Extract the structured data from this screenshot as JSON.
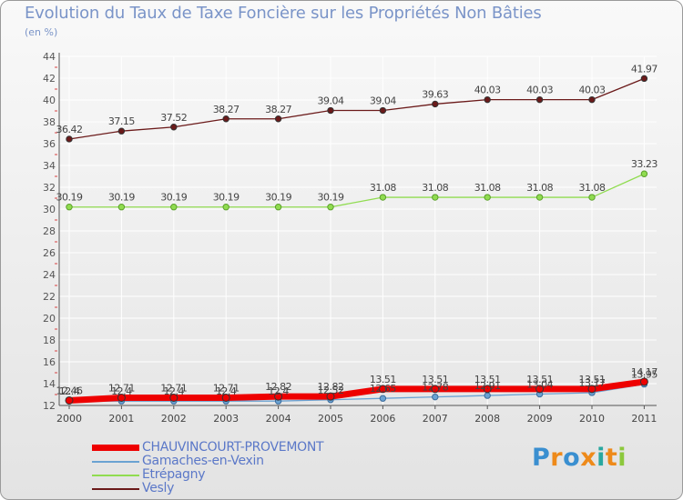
{
  "chart_data": {
    "type": "line",
    "title": "Evolution du Taux de Taxe Foncière sur les Propriétés Non Bâties",
    "unit_label": "(en %)",
    "xlabel": "",
    "ylabel": "",
    "categories": [
      "2000",
      "2001",
      "2002",
      "2003",
      "2004",
      "2005",
      "2006",
      "2007",
      "2008",
      "2009",
      "2010",
      "2011"
    ],
    "ylim": [
      12,
      44
    ],
    "yticks": [
      12,
      14,
      16,
      18,
      20,
      22,
      24,
      26,
      28,
      30,
      32,
      34,
      36,
      38,
      40,
      42,
      44
    ],
    "grid": true,
    "legend_position": "bottom-left",
    "series": [
      {
        "name": "Vesly",
        "color": "#6b1a1a",
        "values": [
          36.42,
          37.15,
          37.52,
          38.27,
          38.27,
          39.04,
          39.04,
          39.63,
          40.03,
          40.03,
          40.03,
          41.97
        ],
        "labels": [
          "36.42",
          "37.15",
          "37.52",
          "38.27",
          "38.27",
          "39.04",
          "39.04",
          "39.63",
          "40.03",
          "40.03",
          "40.03",
          "41.97"
        ]
      },
      {
        "name": "Etrépagny",
        "color": "#90dc50",
        "values": [
          30.19,
          30.19,
          30.19,
          30.19,
          30.19,
          30.19,
          31.08,
          31.08,
          31.08,
          31.08,
          31.08,
          33.23
        ],
        "labels": [
          "30.19",
          "30.19",
          "30.19",
          "30.19",
          "30.19",
          "30.19",
          "31.08",
          "31.08",
          "31.08",
          "31.08",
          "31.08",
          "33.23"
        ]
      },
      {
        "name": "Gamaches-en-Vexin",
        "color": "#6aa2d2",
        "values": [
          12.4,
          12.4,
          12.4,
          12.4,
          12.4,
          12.52,
          12.65,
          12.78,
          12.91,
          13.04,
          13.17,
          13.95
        ],
        "labels": [
          "12.4",
          "12.4",
          "12.4",
          "12.4",
          "12.4",
          "12.52",
          "12.65",
          "12.78",
          "12.91",
          "13.04",
          "13.17",
          "13.95"
        ]
      },
      {
        "name": "CHAUVINCOURT-PROVEMONT",
        "color": "#ee0000",
        "values": [
          12.46,
          12.71,
          12.71,
          12.71,
          12.82,
          12.82,
          13.51,
          13.51,
          13.51,
          13.51,
          13.51,
          14.17
        ],
        "labels": [
          "12.46",
          "12.71",
          "12.71",
          "12.71",
          "12.82",
          "12.82",
          "13.51",
          "13.51",
          "13.51",
          "13.51",
          "13.51",
          "14.17"
        ]
      }
    ],
    "legend": [
      {
        "name": "CHAUVINCOURT-PROVEMONT",
        "color": "#ee0000"
      },
      {
        "name": "Gamaches-en-Vexin",
        "color": "#6aa2d2"
      },
      {
        "name": "Etrépagny",
        "color": "#90dc50"
      },
      {
        "name": "Vesly",
        "color": "#6b1a1a"
      }
    ]
  },
  "brand": {
    "letters": [
      "P",
      "r",
      "o",
      "x",
      "i",
      "t",
      "i"
    ],
    "colors": [
      "#3a8fd0",
      "#ee8a1a",
      "#3a8fd0",
      "#ee8a1a",
      "#2aa8a0",
      "#ee8a1a",
      "#8cc83c"
    ]
  }
}
